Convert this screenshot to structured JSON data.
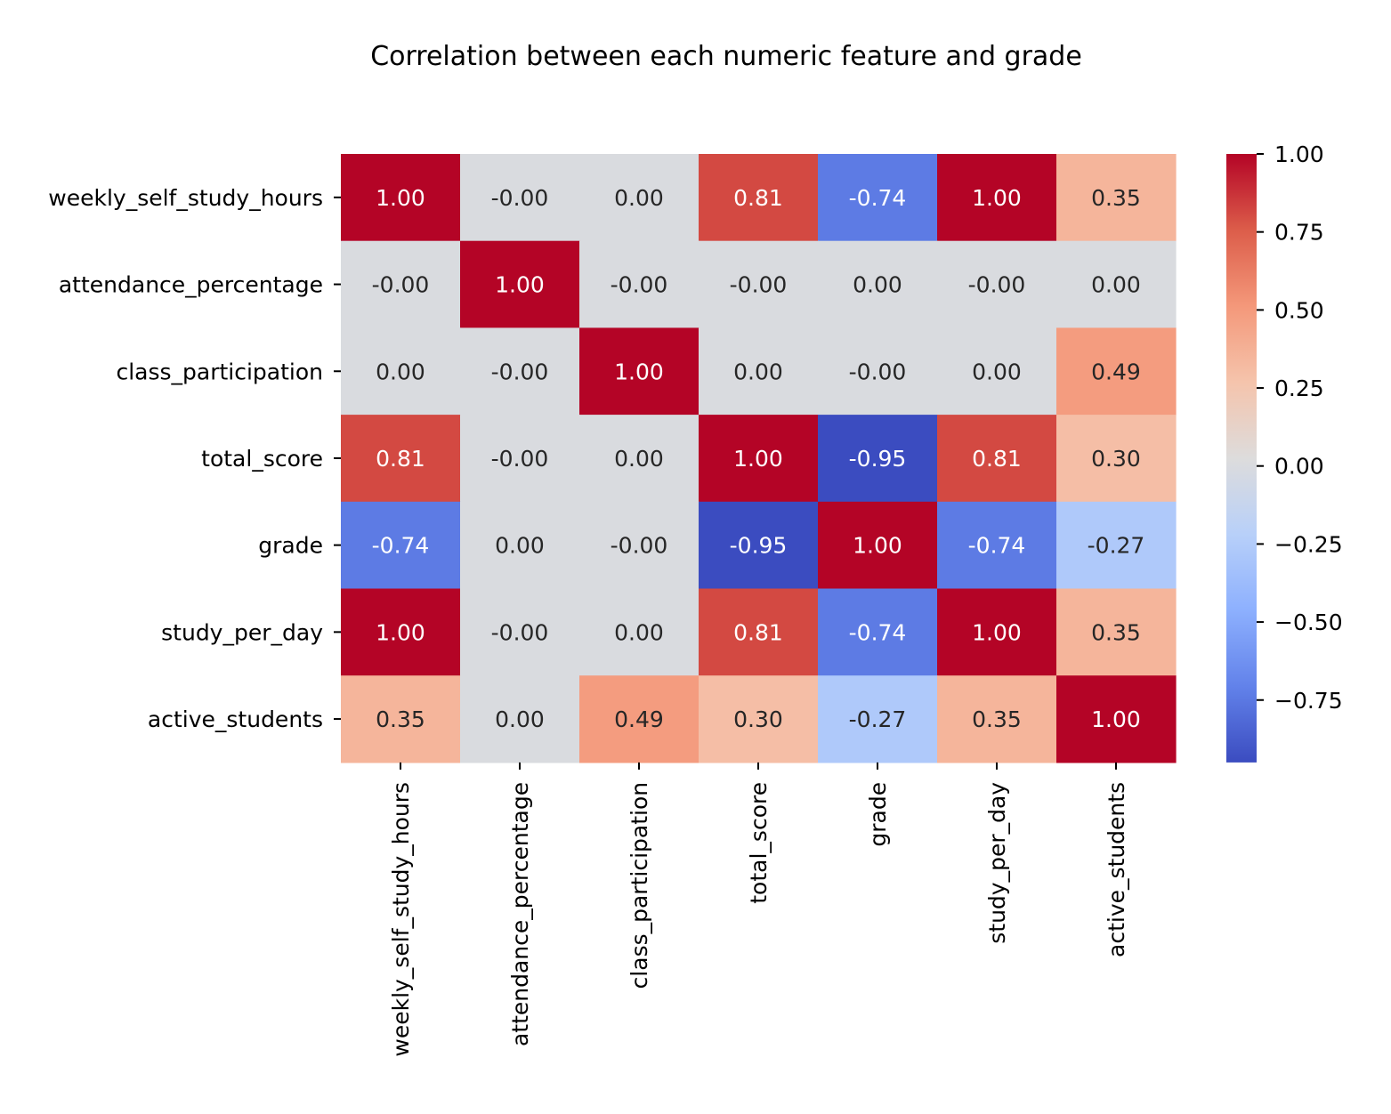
{
  "chart_data": {
    "type": "heatmap",
    "title": "Correlation between each numeric feature and grade",
    "row_labels": [
      "weekly_self_study_hours",
      "attendance_percentage",
      "class_participation",
      "total_score",
      "grade",
      "study_per_day",
      "active_students"
    ],
    "col_labels": [
      "weekly_self_study_hours",
      "attendance_percentage",
      "class_participation",
      "total_score",
      "grade",
      "study_per_day",
      "active_students"
    ],
    "values": [
      [
        1.0,
        -0.0,
        0.0,
        0.81,
        -0.74,
        1.0,
        0.35
      ],
      [
        -0.0,
        1.0,
        -0.0,
        -0.0,
        0.0,
        -0.0,
        0.0
      ],
      [
        0.0,
        -0.0,
        1.0,
        0.0,
        -0.0,
        0.0,
        0.49
      ],
      [
        0.81,
        -0.0,
        0.0,
        1.0,
        -0.95,
        0.81,
        0.3
      ],
      [
        -0.74,
        0.0,
        -0.0,
        -0.95,
        1.0,
        -0.74,
        -0.27
      ],
      [
        1.0,
        -0.0,
        0.0,
        0.81,
        -0.74,
        1.0,
        0.35
      ],
      [
        0.35,
        0.0,
        0.49,
        0.3,
        -0.27,
        0.35,
        1.0
      ]
    ],
    "cell_labels": [
      [
        "1.00",
        "-0.00",
        "0.00",
        "0.81",
        "-0.74",
        "1.00",
        "0.35"
      ],
      [
        "-0.00",
        "1.00",
        "-0.00",
        "-0.00",
        "0.00",
        "-0.00",
        "0.00"
      ],
      [
        "0.00",
        "-0.00",
        "1.00",
        "0.00",
        "-0.00",
        "0.00",
        "0.49"
      ],
      [
        "0.81",
        "-0.00",
        "0.00",
        "1.00",
        "-0.95",
        "0.81",
        "0.30"
      ],
      [
        "-0.74",
        "0.00",
        "-0.00",
        "-0.95",
        "1.00",
        "-0.74",
        "-0.27"
      ],
      [
        "1.00",
        "-0.00",
        "0.00",
        "0.81",
        "-0.74",
        "1.00",
        "0.35"
      ],
      [
        "0.35",
        "0.00",
        "0.49",
        "0.30",
        "-0.27",
        "0.35",
        "1.00"
      ]
    ],
    "colormap": "coolwarm",
    "colormap_stops": [
      "#3b4cc0",
      "#6282ea",
      "#8db0fe",
      "#b8d0f9",
      "#dddcdc",
      "#f5c4ac",
      "#f4987a",
      "#dc5d4a",
      "#b40426"
    ],
    "vmin": -0.95,
    "vmax": 1.0,
    "colorbar_ticks": [
      1.0,
      0.75,
      0.5,
      0.25,
      0.0,
      -0.25,
      -0.5,
      -0.75
    ],
    "colorbar_tick_labels": [
      "1.00",
      "0.75",
      "0.50",
      "0.25",
      "0.00",
      "−0.25",
      "−0.50",
      "−0.75"
    ],
    "colorbar_position": "right"
  }
}
